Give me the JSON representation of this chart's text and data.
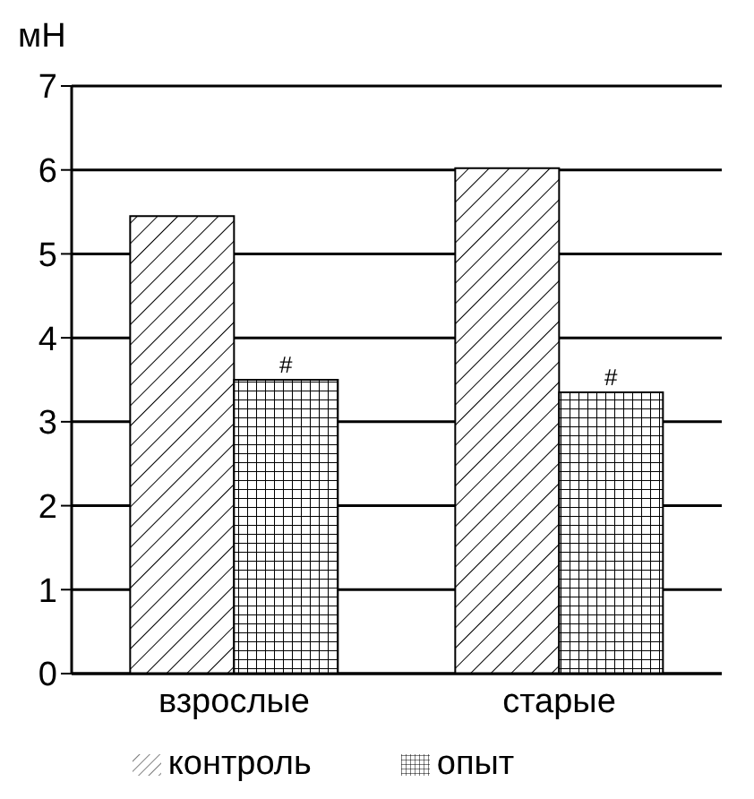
{
  "chart_data": {
    "type": "bar",
    "ylabel": "мН",
    "categories": [
      "взрослые",
      "старые"
    ],
    "series": [
      {
        "name": "контроль",
        "color": "#000000",
        "values": [
          5.45,
          6.02
        ]
      },
      {
        "name": "опыт",
        "color": "#000000",
        "values": [
          3.5,
          3.35
        ]
      }
    ],
    "ylim": [
      0,
      7
    ],
    "yticks": [
      0,
      1,
      2,
      3,
      4,
      5,
      6,
      7
    ],
    "grid": "y",
    "legend": "bottom",
    "annotations": [
      {
        "text": "#",
        "x": "взрослые",
        "y": 3.5
      },
      {
        "text": "#",
        "x": "старые",
        "y": 3.35
      }
    ]
  }
}
